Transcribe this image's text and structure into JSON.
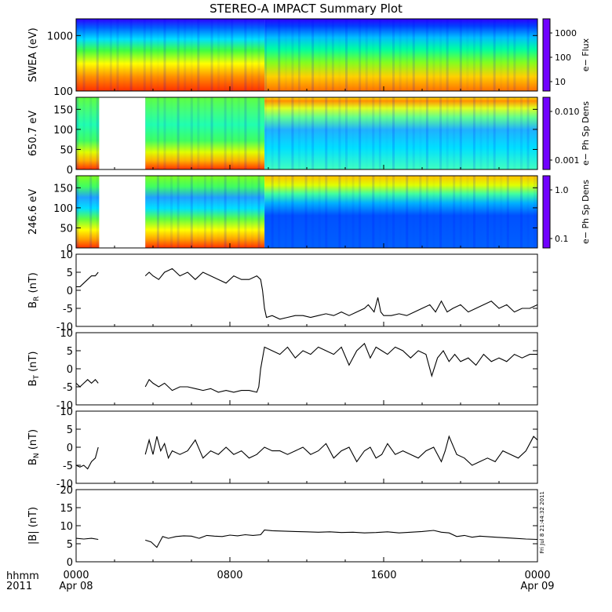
{
  "title": "STEREO-A IMPACT Summary Plot",
  "footer": {
    "format_label": "hhmm",
    "year": "2011",
    "stamp": "Fri Jul 8 21:44:32 2011"
  },
  "x_axis": {
    "range_hours": [
      0,
      24
    ],
    "ticks": [
      {
        "label": "0000",
        "sub": "Apr 08"
      },
      {
        "label": "0800",
        "sub": ""
      },
      {
        "label": "1600",
        "sub": ""
      },
      {
        "label": "0000",
        "sub": "Apr 09"
      }
    ]
  },
  "colors": {
    "trace": "#000000",
    "frame": "#000000",
    "gap": "#ffffff"
  },
  "chart_data": [
    {
      "type": "heatmap",
      "ylabel": "SWEA (eV)",
      "yscale": "log",
      "ylim": [
        100,
        2000
      ],
      "yticks": [
        "1000",
        "100"
      ],
      "colorbar": {
        "label": "e− Flux",
        "scale": "log",
        "ticks": [
          "1000",
          "100",
          "10"
        ]
      },
      "data_gaps_hours": []
    },
    {
      "type": "heatmap",
      "ylabel": "650.7 eV",
      "ylim": [
        0,
        180
      ],
      "yticks": [
        "150",
        "100",
        "50",
        "0"
      ],
      "colorbar": {
        "label": "e− Ph Sp Dens",
        "scale": "log",
        "ticks": [
          "0.010",
          "0.001"
        ]
      },
      "data_gaps_hours": [
        [
          1.2,
          3.6
        ]
      ]
    },
    {
      "type": "heatmap",
      "ylabel": "246.6 eV",
      "ylim": [
        0,
        180
      ],
      "yticks": [
        "150",
        "100",
        "50",
        "0"
      ],
      "colorbar": {
        "label": "e− Ph Sp Dens",
        "scale": "log",
        "ticks": [
          "1.0",
          "0.1"
        ]
      },
      "data_gaps_hours": [
        [
          1.2,
          3.6
        ]
      ]
    },
    {
      "type": "line",
      "ylabel": "B_R (nT)",
      "ylim": [
        -10,
        10
      ],
      "yticks": [
        "10",
        "5",
        "0",
        "-5",
        "-10"
      ],
      "x": [
        0,
        0.2,
        0.4,
        0.6,
        0.8,
        1.0,
        1.15,
        3.6,
        3.8,
        4.0,
        4.3,
        4.6,
        5.0,
        5.4,
        5.8,
        6.2,
        6.6,
        7.0,
        7.4,
        7.8,
        8.2,
        8.6,
        9.0,
        9.4,
        9.6,
        9.7,
        9.8,
        9.9,
        10.2,
        10.6,
        11.0,
        11.4,
        11.8,
        12.2,
        12.6,
        13.0,
        13.4,
        13.8,
        14.2,
        14.6,
        15.0,
        15.2,
        15.5,
        15.7,
        15.85,
        16.0,
        16.4,
        16.8,
        17.2,
        17.6,
        18.0,
        18.4,
        18.7,
        19.0,
        19.3,
        19.6,
        20.0,
        20.4,
        20.8,
        21.2,
        21.6,
        22.0,
        22.4,
        22.8,
        23.2,
        23.6,
        24.0
      ],
      "y": [
        1,
        1,
        2,
        3,
        4,
        4,
        5,
        4,
        5,
        4,
        3,
        5,
        6,
        4,
        5,
        3,
        5,
        4,
        3,
        2,
        4,
        3,
        3,
        4,
        3,
        0,
        -5,
        -7.5,
        -7,
        -8,
        -7.5,
        -7,
        -7,
        -7.5,
        -7,
        -6.5,
        -7,
        -6,
        -7,
        -6,
        -5,
        -4,
        -6,
        -2,
        -6,
        -7,
        -7,
        -6.5,
        -7,
        -6,
        -5,
        -4,
        -6,
        -3,
        -6,
        -5,
        -4,
        -6,
        -5,
        -4,
        -3,
        -5,
        -4,
        -6,
        -5,
        -5,
        -4
      ]
    },
    {
      "type": "line",
      "ylabel": "B_T (nT)",
      "ylim": [
        -10,
        10
      ],
      "yticks": [
        "10",
        "5",
        "0",
        "-5",
        "-10"
      ],
      "x": [
        0,
        0.2,
        0.4,
        0.6,
        0.8,
        1.0,
        1.15,
        3.6,
        3.8,
        4.0,
        4.3,
        4.6,
        5.0,
        5.4,
        5.8,
        6.2,
        6.6,
        7.0,
        7.4,
        7.8,
        8.2,
        8.6,
        9.0,
        9.4,
        9.5,
        9.6,
        9.8,
        10.2,
        10.6,
        11.0,
        11.4,
        11.8,
        12.2,
        12.6,
        13.0,
        13.4,
        13.8,
        14.2,
        14.6,
        15.0,
        15.3,
        15.6,
        15.9,
        16.2,
        16.6,
        17.0,
        17.4,
        17.8,
        18.2,
        18.5,
        18.8,
        19.1,
        19.4,
        19.7,
        20.0,
        20.4,
        20.8,
        21.2,
        21.6,
        22.0,
        22.4,
        22.8,
        23.2,
        23.6,
        24.0
      ],
      "y": [
        -4,
        -5,
        -4,
        -3,
        -4,
        -3,
        -4,
        -5,
        -3,
        -4,
        -5,
        -4,
        -6,
        -5,
        -5,
        -5.5,
        -6,
        -5.5,
        -6.5,
        -6,
        -6.5,
        -6,
        -6,
        -6.5,
        -5,
        0,
        6,
        5,
        4,
        6,
        3,
        5,
        4,
        6,
        5,
        4,
        6,
        1,
        5,
        7,
        3,
        6,
        5,
        4,
        6,
        5,
        3,
        5,
        4,
        -2,
        3,
        5,
        2,
        4,
        2,
        3,
        1,
        4,
        2,
        3,
        2,
        4,
        3,
        4,
        4
      ]
    },
    {
      "type": "line",
      "ylabel": "B_N (nT)",
      "ylim": [
        -10,
        10
      ],
      "yticks": [
        "10",
        "5",
        "0",
        "-5",
        "-10"
      ],
      "x": [
        0,
        0.2,
        0.4,
        0.6,
        0.8,
        1.0,
        1.15,
        3.6,
        3.8,
        4.0,
        4.2,
        4.4,
        4.6,
        4.8,
        5.0,
        5.4,
        5.8,
        6.2,
        6.6,
        7.0,
        7.4,
        7.8,
        8.2,
        8.6,
        9.0,
        9.4,
        9.8,
        10.2,
        10.6,
        11.0,
        11.4,
        11.8,
        12.2,
        12.6,
        13.0,
        13.4,
        13.8,
        14.2,
        14.6,
        15.0,
        15.3,
        15.6,
        15.9,
        16.2,
        16.6,
        17.0,
        17.4,
        17.8,
        18.2,
        18.6,
        19.0,
        19.2,
        19.4,
        19.8,
        20.2,
        20.6,
        21.0,
        21.4,
        21.8,
        22.2,
        22.6,
        23.0,
        23.4,
        23.8,
        24.0
      ],
      "y": [
        -5,
        -5.5,
        -5,
        -6,
        -4,
        -3,
        0,
        -2,
        2,
        -2,
        3,
        -1,
        1,
        -3,
        -1,
        -2,
        -1,
        2,
        -3,
        -1,
        -2,
        0,
        -2,
        -1,
        -3,
        -2,
        0,
        -1,
        -1,
        -2,
        -1,
        0,
        -2,
        -1,
        1,
        -3,
        -1,
        0,
        -4,
        -1,
        0,
        -3,
        -2,
        1,
        -2,
        -1,
        -2,
        -3,
        -1,
        0,
        -4,
        -1,
        3,
        -2,
        -3,
        -5,
        -4,
        -3,
        -4,
        -1,
        -2,
        -3,
        -1,
        3,
        2
      ]
    },
    {
      "type": "line",
      "ylabel": "|B| (nT)",
      "ylim": [
        0,
        20
      ],
      "yticks": [
        "20",
        "15",
        "10",
        "5",
        "0"
      ],
      "x": [
        0,
        0.4,
        0.8,
        1.15,
        3.6,
        3.9,
        4.2,
        4.5,
        4.8,
        5.2,
        5.6,
        6.0,
        6.4,
        6.8,
        7.2,
        7.6,
        8.0,
        8.4,
        8.8,
        9.2,
        9.6,
        9.8,
        10.2,
        10.8,
        11.4,
        12.0,
        12.6,
        13.2,
        13.8,
        14.4,
        15.0,
        15.6,
        16.2,
        16.8,
        17.4,
        18.0,
        18.6,
        19.0,
        19.4,
        19.8,
        20.2,
        20.6,
        21.0,
        21.6,
        22.2,
        22.8,
        23.4,
        24.0
      ],
      "y": [
        6.5,
        6.3,
        6.5,
        6.2,
        6,
        5.5,
        4,
        7,
        6.5,
        7,
        7.2,
        7.1,
        6.5,
        7.3,
        7.1,
        7,
        7.4,
        7.2,
        7.5,
        7.3,
        7.5,
        8.8,
        8.6,
        8.5,
        8.4,
        8.3,
        8.2,
        8.3,
        8.1,
        8.2,
        8,
        8.1,
        8.3,
        8,
        8.2,
        8.4,
        8.7,
        8.2,
        8,
        7,
        7.3,
        6.8,
        7.1,
        6.9,
        6.7,
        6.5,
        6.3,
        6.2
      ]
    }
  ]
}
